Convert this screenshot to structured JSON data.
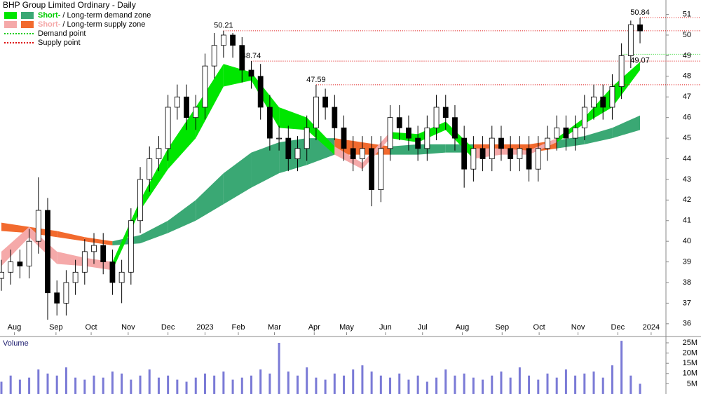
{
  "chart_data": {
    "type": "candlestick",
    "title": "BHP Group Limited Ordinary - Daily",
    "xlim": [
      -0.15,
      71.8
    ],
    "xticks": [
      {
        "value": 1.4,
        "label": "Aug"
      },
      {
        "value": 5.9,
        "label": "Sep"
      },
      {
        "value": 9.7,
        "label": "Oct"
      },
      {
        "value": 13.7,
        "label": "Nov"
      },
      {
        "value": 18.0,
        "label": "Dec"
      },
      {
        "value": 22.0,
        "label": "2023"
      },
      {
        "value": 25.6,
        "label": "Feb"
      },
      {
        "value": 29.5,
        "label": "Mar"
      },
      {
        "value": 33.8,
        "label": "Apr"
      },
      {
        "value": 37.3,
        "label": "May"
      },
      {
        "value": 41.5,
        "label": "Jun"
      },
      {
        "value": 45.5,
        "label": "Jul"
      },
      {
        "value": 49.8,
        "label": "Aug"
      },
      {
        "value": 54.1,
        "label": "Sep"
      },
      {
        "value": 58.1,
        "label": "Oct"
      },
      {
        "value": 62.3,
        "label": "Nov"
      },
      {
        "value": 66.6,
        "label": "Dec"
      },
      {
        "value": 70.2,
        "label": "2024"
      }
    ],
    "ylim": [
      35.45,
      51.7
    ],
    "yticks": [
      36,
      37,
      38,
      39,
      40,
      41,
      42,
      43,
      44,
      45,
      46,
      47,
      48,
      49,
      50,
      51
    ],
    "up_color": "#ffffff",
    "down_color": "#000000",
    "open": [
      38.2,
      38.5,
      39,
      38.8,
      40,
      41.5,
      37.5,
      37,
      38,
      38.5,
      39.5,
      39.8,
      39,
      38,
      38.5,
      41,
      43,
      44,
      44.5,
      46.5,
      47,
      46,
      46.5,
      48.5,
      49.5,
      50,
      49.5,
      48.3,
      48,
      46.5,
      45,
      45,
      44,
      44.5,
      45.5,
      47,
      46.5,
      45.5,
      44.5,
      44,
      44.5,
      42.5,
      44.5,
      46,
      45.5,
      45,
      44.5,
      45.5,
      46.5,
      46,
      45,
      43.5,
      44.5,
      44,
      45,
      44.5,
      44,
      44.5,
      43.5,
      44.5,
      45,
      45.5,
      45,
      45.5,
      46.5,
      47,
      46.5,
      47.5,
      49,
      50.5
    ],
    "high": [
      39.1,
      39.6,
      39.6,
      40.6,
      43.1,
      42.1,
      38.1,
      38.6,
      39.1,
      40.1,
      40.4,
      40.4,
      39.6,
      39.1,
      41.6,
      43.6,
      44.6,
      45.1,
      47.1,
      47.6,
      47.6,
      47.1,
      49.1,
      50.1,
      50.21,
      50.1,
      49.9,
      48.74,
      48.6,
      47.1,
      45.6,
      45.6,
      45.1,
      46.1,
      47.59,
      47.4,
      47.1,
      46.1,
      45.1,
      45.1,
      45.1,
      45.1,
      46.6,
      46.6,
      46.1,
      45.6,
      46.1,
      47.1,
      47.1,
      46.6,
      45.6,
      45.1,
      45.1,
      45.6,
      45.6,
      45.1,
      45.1,
      45.1,
      45.1,
      45.6,
      46.1,
      46.1,
      46.1,
      47.1,
      47.6,
      47.6,
      48.1,
      49.6,
      50.7,
      50.84
    ],
    "low": [
      37.6,
      37.9,
      38.2,
      38.2,
      39.4,
      36.2,
      36.4,
      36.4,
      37.4,
      37.9,
      38.9,
      38.4,
      37.4,
      37.0,
      37.9,
      40.4,
      42.4,
      43.4,
      43.9,
      45.9,
      45.4,
      45.4,
      45.9,
      47.9,
      48.9,
      48.9,
      47.7,
      47.4,
      45.9,
      44.4,
      44.4,
      43.4,
      43.4,
      43.9,
      44.9,
      45.9,
      44.9,
      43.9,
      43.4,
      43.4,
      41.7,
      41.9,
      43.9,
      44.9,
      44.4,
      43.9,
      43.9,
      44.9,
      45.4,
      44.4,
      42.6,
      42.9,
      43.4,
      43.4,
      43.9,
      43.4,
      43.4,
      42.9,
      42.9,
      43.9,
      44.4,
      44.4,
      44.4,
      44.9,
      45.9,
      45.9,
      45.9,
      46.9,
      48.4,
      49.6
    ],
    "close": [
      38.5,
      39,
      38.8,
      40,
      41.5,
      37.5,
      37,
      38,
      38.5,
      39.5,
      39.8,
      39,
      38,
      38.5,
      41,
      43,
      44,
      44.5,
      46.5,
      47,
      46,
      46.5,
      48.5,
      49.5,
      50,
      49.5,
      48.3,
      48,
      46.5,
      45,
      45,
      44,
      44.5,
      45.5,
      47,
      46.5,
      45.5,
      44.5,
      44,
      44.5,
      42.5,
      44.5,
      46,
      45.5,
      45,
      44.5,
      45.5,
      46.5,
      46,
      45,
      43.5,
      44.5,
      44,
      45,
      44.5,
      44,
      44.5,
      43.5,
      44.5,
      45,
      45.5,
      45,
      45.5,
      46.5,
      47,
      46.5,
      47.5,
      49,
      50.5,
      50.2
    ],
    "zones": {
      "x": [
        0,
        3,
        6,
        9,
        12,
        15,
        18,
        21,
        24,
        27,
        30,
        33,
        36,
        39,
        42,
        45,
        48,
        51,
        54,
        57,
        60,
        63,
        66,
        69
      ],
      "short_upper": [
        39.5,
        40.7,
        39.5,
        39.2,
        39.0,
        42.0,
        44.5,
        46.5,
        48.6,
        48.2,
        46.5,
        46.0,
        44.6,
        43.8,
        45.3,
        45.2,
        45.8,
        44.5,
        44.5,
        44.4,
        45.0,
        46.0,
        47.5,
        48.7
      ],
      "short_lower": [
        38.8,
        40.2,
        38.9,
        38.8,
        38.6,
        41.5,
        43.5,
        45.0,
        47.5,
        47.8,
        45.5,
        45.4,
        44.2,
        43.5,
        45.0,
        44.8,
        45.4,
        44.0,
        44.2,
        44.2,
        44.8,
        45.7,
        46.5,
        48.3
      ],
      "long_upper": [
        40.9,
        40.7,
        40.5,
        40.2,
        40.0,
        40.3,
        41.0,
        42.0,
        43.3,
        44.3,
        44.8,
        45.0,
        45.0,
        44.8,
        44.6,
        44.7,
        44.7,
        44.7,
        44.7,
        44.7,
        44.9,
        45.1,
        45.5,
        46.1
      ],
      "long_lower": [
        40.5,
        40.4,
        40.2,
        40.0,
        39.8,
        39.9,
        40.4,
        41.0,
        41.8,
        42.6,
        43.3,
        43.7,
        44.2,
        44.2,
        44.2,
        44.2,
        44.3,
        44.3,
        44.3,
        44.3,
        44.5,
        44.7,
        45.0,
        45.4
      ]
    },
    "legend": [
      {
        "lead": "Short-",
        "rest": "/ Long-term demand zone",
        "short_color": "#00e600",
        "long_color": "#3aa874",
        "lead_color": "#00cc00"
      },
      {
        "lead": "Short-",
        "rest": "/ Long-term supply zone",
        "short_color": "#f5a9a9",
        "long_color": "#f26a2e",
        "lead_color": "#f5a9a9"
      },
      {
        "rest": "Demand point",
        "line_color": "#00cc00"
      },
      {
        "rest": "Supply point",
        "line_color": "#dd0000"
      }
    ],
    "supply_points": [
      50.21,
      48.74,
      47.59,
      50.84
    ],
    "demand_points": [
      49.07
    ],
    "volume": {
      "label": "Volume",
      "color": "#7a7ad6",
      "ylim": [
        0,
        27.4
      ],
      "yticks": [
        {
          "value": 5,
          "label": "5M"
        },
        {
          "value": 10,
          "label": "10M"
        },
        {
          "value": 15,
          "label": "15M"
        },
        {
          "value": 20,
          "label": "20M"
        },
        {
          "value": 25,
          "label": "25M"
        }
      ],
      "values": [
        6,
        9,
        7,
        8,
        12,
        10,
        9,
        13,
        8,
        7,
        9,
        8,
        11,
        10,
        7,
        9,
        12,
        8,
        9,
        7,
        6,
        8,
        10,
        9,
        11,
        7,
        8,
        9,
        12,
        10,
        25,
        11,
        9,
        13,
        8,
        7,
        10,
        9,
        12,
        14,
        11,
        9,
        8,
        10,
        7,
        9,
        6,
        8,
        12,
        9,
        10,
        8,
        7,
        9,
        11,
        8,
        13,
        9,
        7,
        10,
        8,
        12,
        9,
        10,
        11,
        8,
        14,
        26,
        9,
        5
      ]
    }
  }
}
